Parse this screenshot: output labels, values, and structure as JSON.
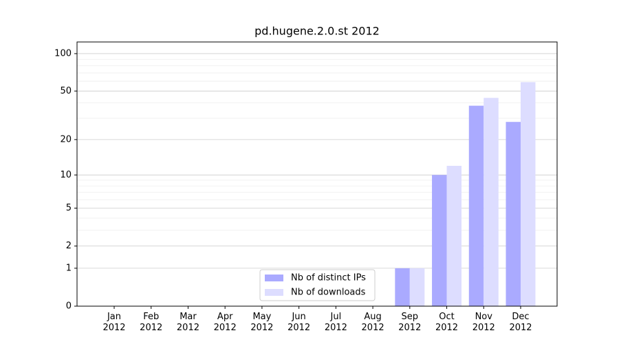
{
  "chart_data": {
    "type": "bar",
    "title": "pd.hugene.2.0.st 2012",
    "categories": [
      "Jan\n2012",
      "Feb\n2012",
      "Mar\n2012",
      "Apr\n2012",
      "May\n2012",
      "Jun\n2012",
      "Jul\n2012",
      "Aug\n2012",
      "Sep\n2012",
      "Oct\n2012",
      "Nov\n2012",
      "Dec\n2012"
    ],
    "series": [
      {
        "name": "Nb of distinct IPs",
        "color": "#aaaaff",
        "values": [
          0,
          0,
          0,
          0,
          0,
          0,
          0,
          0,
          1,
          10,
          38,
          28
        ]
      },
      {
        "name": "Nb of downloads",
        "color": "#ddddff",
        "values": [
          0,
          0,
          0,
          0,
          0,
          0,
          0,
          0,
          1,
          12,
          44,
          59
        ]
      }
    ],
    "yscale": "log1p",
    "ylim": [
      0,
      124
    ],
    "yticks": [
      0,
      1,
      2,
      5,
      10,
      20,
      50,
      100
    ],
    "minor_grid": [
      3,
      4,
      6,
      7,
      8,
      9,
      30,
      40,
      60,
      70,
      80,
      90
    ],
    "grid": true,
    "legend": "lower center"
  }
}
